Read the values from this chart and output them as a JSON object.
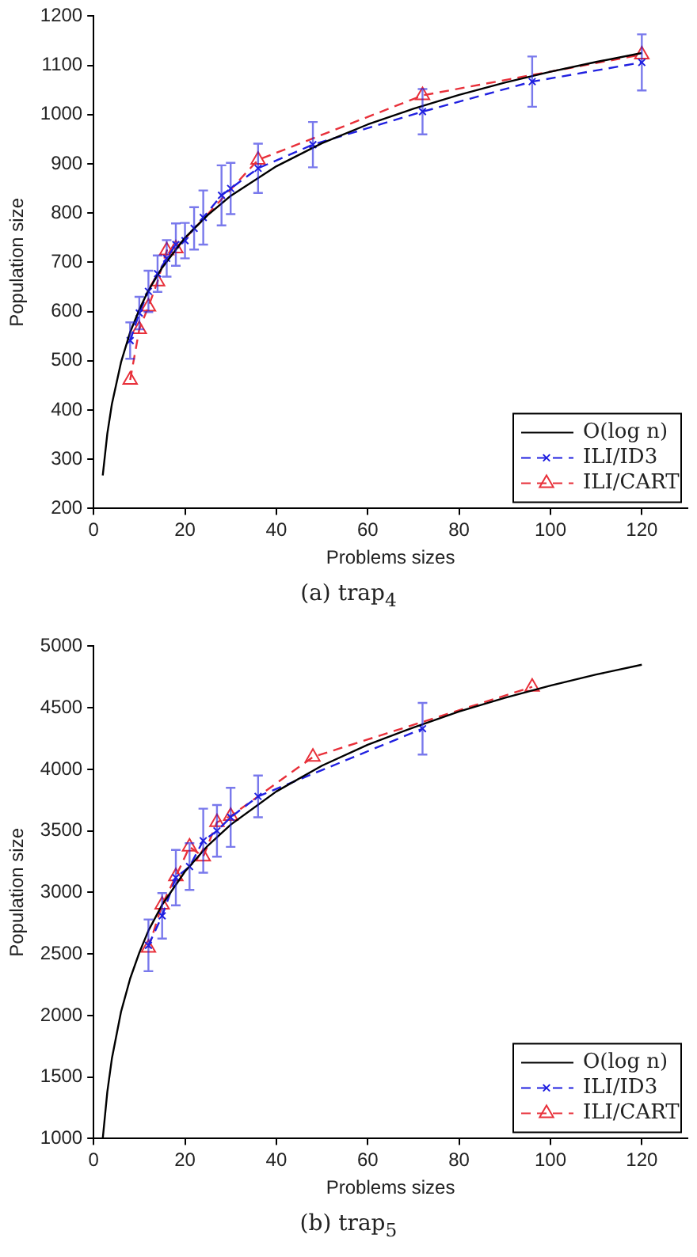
{
  "chart_data": [
    {
      "type": "line",
      "xlabel": "Problems sizes",
      "ylabel": "Population size",
      "xlim": [
        0,
        130
      ],
      "xticks": [
        0,
        20,
        40,
        60,
        80,
        100,
        120
      ],
      "ylim": [
        200,
        1200
      ],
      "yticks": [
        200,
        300,
        400,
        500,
        600,
        700,
        800,
        900,
        1000,
        1100,
        1200
      ],
      "grid": false,
      "legend": "bottom right",
      "annotations": [
        "(a) trap$_{4}$"
      ],
      "series": [
        {
          "name": "O(log n)",
          "type": "line",
          "color": "#000000",
          "marker": "none",
          "line_style": "solid",
          "x": [
            2,
            3,
            4,
            6,
            8,
            10,
            12,
            15,
            20,
            25,
            30,
            40,
            50,
            60,
            70,
            80,
            90,
            100,
            110,
            120
          ],
          "values": [
            267,
            352,
            412,
            497,
            558,
            604,
            643,
            689,
            750,
            796,
            835,
            895,
            942,
            980,
            1012,
            1040,
            1065,
            1087,
            1107,
            1125
          ]
        },
        {
          "name": "ILI/ID3",
          "type": "line",
          "color": "#2020e0",
          "marker": "cross",
          "line_style": "dashed",
          "x": [
            8,
            10,
            12,
            14,
            16,
            18,
            20,
            22,
            24,
            28,
            30,
            36,
            48,
            72,
            96,
            120
          ],
          "values": [
            541,
            597,
            641,
            677,
            708,
            736,
            744,
            769,
            791,
            836,
            850,
            891,
            939,
            1006,
            1067,
            1106
          ],
          "errors": [
            37,
            33,
            42,
            37,
            37,
            43,
            36,
            43,
            55,
            61,
            52,
            50,
            46,
            46,
            51,
            57
          ]
        },
        {
          "name": "ILI/CART",
          "type": "line",
          "color": "#e8303a",
          "marker": "triangle",
          "line_style": "dashed",
          "x": [
            8,
            10,
            12,
            14,
            16,
            18,
            36,
            72,
            120
          ],
          "values": [
            461,
            564,
            610,
            661,
            724,
            728,
            908,
            1039,
            1122
          ]
        }
      ]
    },
    {
      "type": "line",
      "xlabel": "Problems sizes",
      "ylabel": "Population size",
      "xlim": [
        0,
        130
      ],
      "xticks": [
        0,
        20,
        40,
        60,
        80,
        100,
        120
      ],
      "ylim": [
        1000,
        5000
      ],
      "yticks": [
        1000,
        1500,
        2000,
        2500,
        3000,
        3500,
        4000,
        4500,
        5000
      ],
      "grid": false,
      "legend": "bottom right",
      "annotations": [
        "(b) trap$_{5}$"
      ],
      "series": [
        {
          "name": "O(log n)",
          "type": "line",
          "color": "#000000",
          "marker": "none",
          "line_style": "solid",
          "x": [
            2,
            3,
            4,
            6,
            8,
            10,
            12,
            15,
            20,
            25,
            30,
            40,
            50,
            60,
            70,
            80,
            90,
            100,
            110,
            120
          ],
          "values": [
            1000,
            1380,
            1650,
            2030,
            2300,
            2510,
            2690,
            2900,
            3170,
            3380,
            3550,
            3820,
            4030,
            4200,
            4340,
            4470,
            4580,
            4680,
            4770,
            4850
          ]
        },
        {
          "name": "ILI/ID3",
          "type": "line",
          "color": "#2020e0",
          "marker": "cross",
          "line_style": "dashed",
          "x": [
            12,
            15,
            18,
            21,
            24,
            27,
            30,
            36,
            72
          ],
          "values": [
            2570,
            2810,
            3120,
            3210,
            3420,
            3500,
            3610,
            3780,
            4330
          ],
          "errors": [
            210,
            185,
            225,
            190,
            260,
            210,
            240,
            170,
            210
          ]
        },
        {
          "name": "ILI/CART",
          "type": "line",
          "color": "#e8303a",
          "marker": "triangle",
          "line_style": "dashed",
          "x": [
            12,
            15,
            18,
            21,
            24,
            27,
            30,
            48,
            96
          ],
          "values": [
            2550,
            2900,
            3130,
            3370,
            3290,
            3570,
            3620,
            4100,
            4670
          ]
        }
      ]
    }
  ]
}
